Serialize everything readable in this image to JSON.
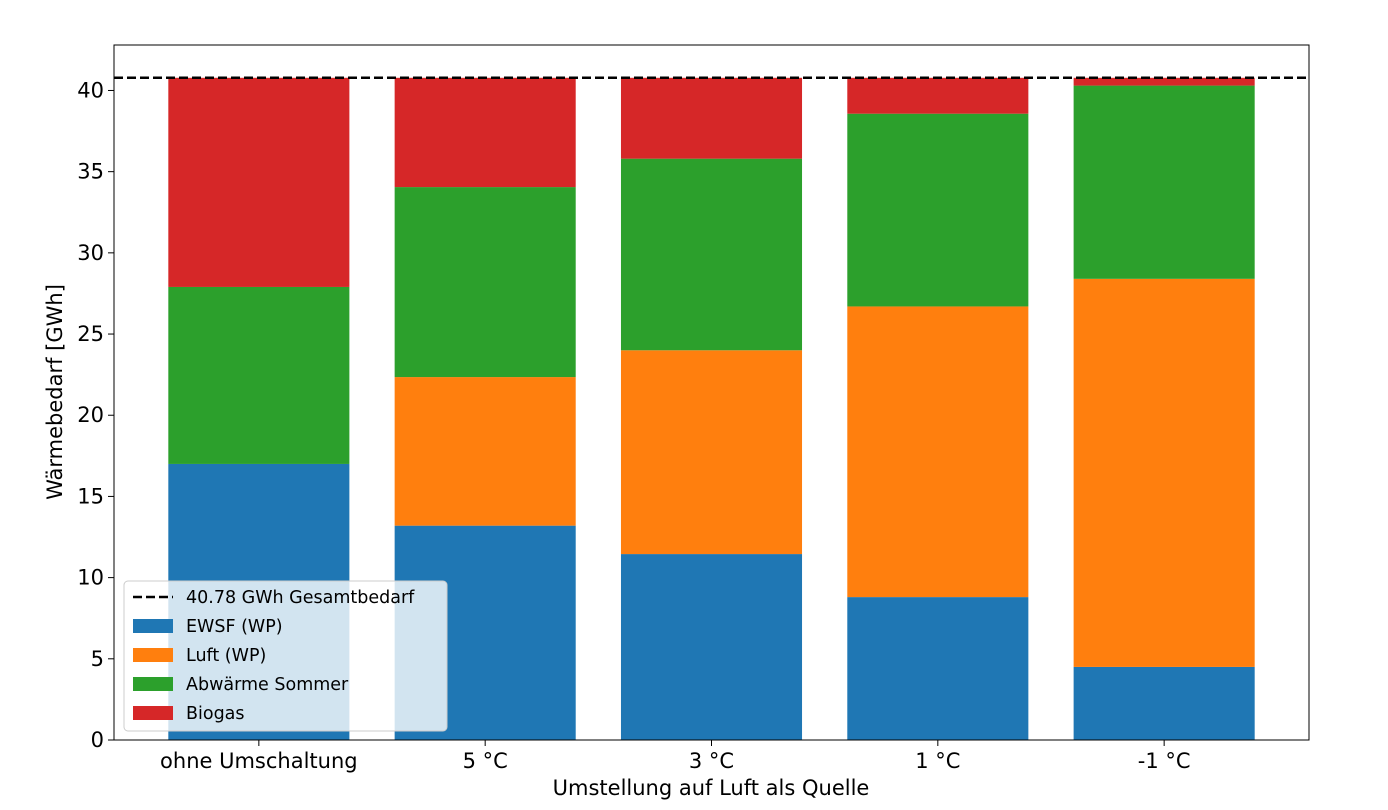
{
  "chart_data": {
    "type": "bar",
    "stacked": true,
    "categories": [
      "ohne Umschaltung",
      "5 °C",
      "3 °C",
      "1 °C",
      "-1 °C"
    ],
    "series": [
      {
        "name": "EWSF (WP)",
        "color": "#1f77b4",
        "values": [
          17.0,
          13.2,
          11.45,
          8.8,
          4.5
        ]
      },
      {
        "name": "Luft (WP)",
        "color": "#ff7f0e",
        "values": [
          0.0,
          9.15,
          12.55,
          17.9,
          23.9
        ]
      },
      {
        "name": "Abwärme Sommer",
        "color": "#2ca02c",
        "values": [
          10.9,
          11.7,
          11.8,
          11.87,
          11.9
        ]
      },
      {
        "name": "Biogas",
        "color": "#d62728",
        "values": [
          12.88,
          6.73,
          4.98,
          2.21,
          0.48
        ]
      }
    ],
    "reference_line": {
      "value": 40.78,
      "label": "40.78 GWh Gesamtbedarf",
      "style": "dashed",
      "color": "#000000"
    },
    "xlabel": "Umstellung auf Luft als Quelle",
    "ylabel": "Wärmebedarf [GWh]",
    "ylim": [
      0,
      42.8
    ],
    "yticks": [
      0,
      5,
      10,
      15,
      20,
      25,
      30,
      35,
      40
    ],
    "grid": false,
    "legend_position": "lower-left"
  }
}
